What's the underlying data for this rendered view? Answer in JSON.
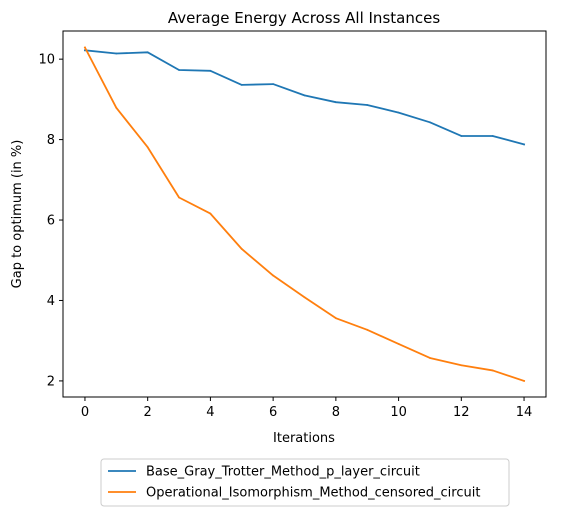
{
  "chart_data": {
    "type": "line",
    "title": "Average Energy Across All Instances",
    "xlabel": "Iterations",
    "ylabel": "Gap to optimum (in %)",
    "x": [
      0,
      1,
      2,
      3,
      4,
      5,
      6,
      7,
      8,
      9,
      10,
      11,
      12,
      13,
      14
    ],
    "xlim": [
      -0.7,
      14.7
    ],
    "ylim": [
      1.6,
      10.7
    ],
    "xticks": [
      0,
      2,
      4,
      6,
      8,
      10,
      12,
      14
    ],
    "yticks": [
      2,
      4,
      6,
      8,
      10
    ],
    "grid": false,
    "legend_position": "below-center",
    "series": [
      {
        "name": "Base_Gray_Trotter_Method_p_layer_circuit",
        "color": "#1f77b4",
        "values": [
          10.22,
          10.14,
          10.17,
          9.73,
          9.71,
          9.36,
          9.38,
          9.1,
          8.93,
          8.86,
          8.67,
          8.43,
          8.09,
          8.09,
          7.88
        ]
      },
      {
        "name": "Operational_Isomorphism_Method_censored_circuit",
        "color": "#ff7f0e",
        "values": [
          10.29,
          8.79,
          7.81,
          6.56,
          6.16,
          5.28,
          4.62,
          4.08,
          3.56,
          3.27,
          2.92,
          2.57,
          2.39,
          2.26,
          2.0
        ]
      }
    ]
  }
}
